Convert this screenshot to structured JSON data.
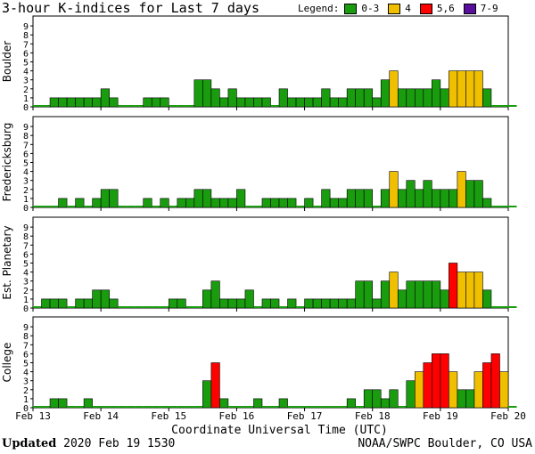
{
  "header": {
    "title": "3-hour K-indices for Last 7 days"
  },
  "legend": {
    "label": "Legend:",
    "items": [
      {
        "label": "0-3",
        "color": "#1a9c0f"
      },
      {
        "label": "4",
        "color": "#f0c000"
      },
      {
        "label": "5,6",
        "color": "#ff0000"
      },
      {
        "label": "7-9",
        "color": "#5a0f9c"
      }
    ]
  },
  "footer": {
    "updated_label": "Updated",
    "updated_value": "2020 Feb 19 1530",
    "source": "NOAA/SWPC Boulder, CO USA"
  },
  "chart_data": {
    "type": "bar",
    "xlabel": "Coordinate Universal Time (UTC)",
    "x_ticks": [
      "Feb 13",
      "Feb 14",
      "Feb 15",
      "Feb 16",
      "Feb 17",
      "Feb 18",
      "Feb 19",
      "Feb 20"
    ],
    "ylim": [
      0,
      9
    ],
    "y_ticks": [
      0,
      1,
      2,
      3,
      4,
      5,
      6,
      7,
      8,
      9
    ],
    "bins_per_day": 8,
    "panels": [
      {
        "name": "Boulder",
        "values": [
          0,
          0,
          1,
          1,
          1,
          1,
          1,
          1,
          2,
          1,
          0,
          0,
          0,
          1,
          1,
          1,
          0,
          0,
          0,
          3,
          3,
          2,
          1,
          2,
          1,
          1,
          1,
          1,
          0,
          2,
          1,
          1,
          1,
          1,
          2,
          1,
          1,
          2,
          2,
          2,
          1,
          3,
          4,
          2,
          2,
          2,
          2,
          3,
          2,
          4,
          4,
          4,
          4,
          2,
          0,
          0,
          0
        ]
      },
      {
        "name": "Fredericksburg",
        "values": [
          0,
          0,
          0,
          1,
          0,
          1,
          0,
          1,
          2,
          2,
          0,
          0,
          0,
          1,
          0,
          1,
          0,
          1,
          1,
          2,
          2,
          1,
          1,
          1,
          2,
          0,
          0,
          1,
          1,
          1,
          1,
          0,
          1,
          0,
          2,
          1,
          1,
          2,
          2,
          2,
          0,
          2,
          4,
          2,
          3,
          2,
          3,
          2,
          2,
          2,
          4,
          3,
          3,
          1,
          0,
          0,
          0
        ]
      },
      {
        "name": "Est. Planetary",
        "values": [
          0,
          1,
          1,
          1,
          0,
          1,
          1,
          2,
          2,
          1,
          0,
          0,
          0,
          0,
          0,
          0,
          1,
          1,
          0,
          0,
          2,
          3,
          1,
          1,
          1,
          2,
          0,
          1,
          1,
          0,
          1,
          0,
          1,
          1,
          1,
          1,
          1,
          1,
          3,
          3,
          1,
          3,
          4,
          2,
          3,
          3,
          3,
          3,
          2,
          5,
          4,
          4,
          4,
          2,
          0,
          0,
          0
        ]
      },
      {
        "name": "College",
        "values": [
          0,
          0,
          1,
          1,
          0,
          0,
          1,
          0,
          0,
          0,
          0,
          0,
          0,
          0,
          0,
          0,
          0,
          0,
          0,
          0,
          3,
          5,
          1,
          0,
          0,
          0,
          1,
          0,
          0,
          1,
          0,
          0,
          0,
          0,
          0,
          0,
          0,
          1,
          0,
          2,
          2,
          1,
          2,
          0,
          3,
          4,
          5,
          6,
          6,
          4,
          2,
          2,
          4,
          5,
          6,
          4,
          0
        ]
      }
    ]
  }
}
